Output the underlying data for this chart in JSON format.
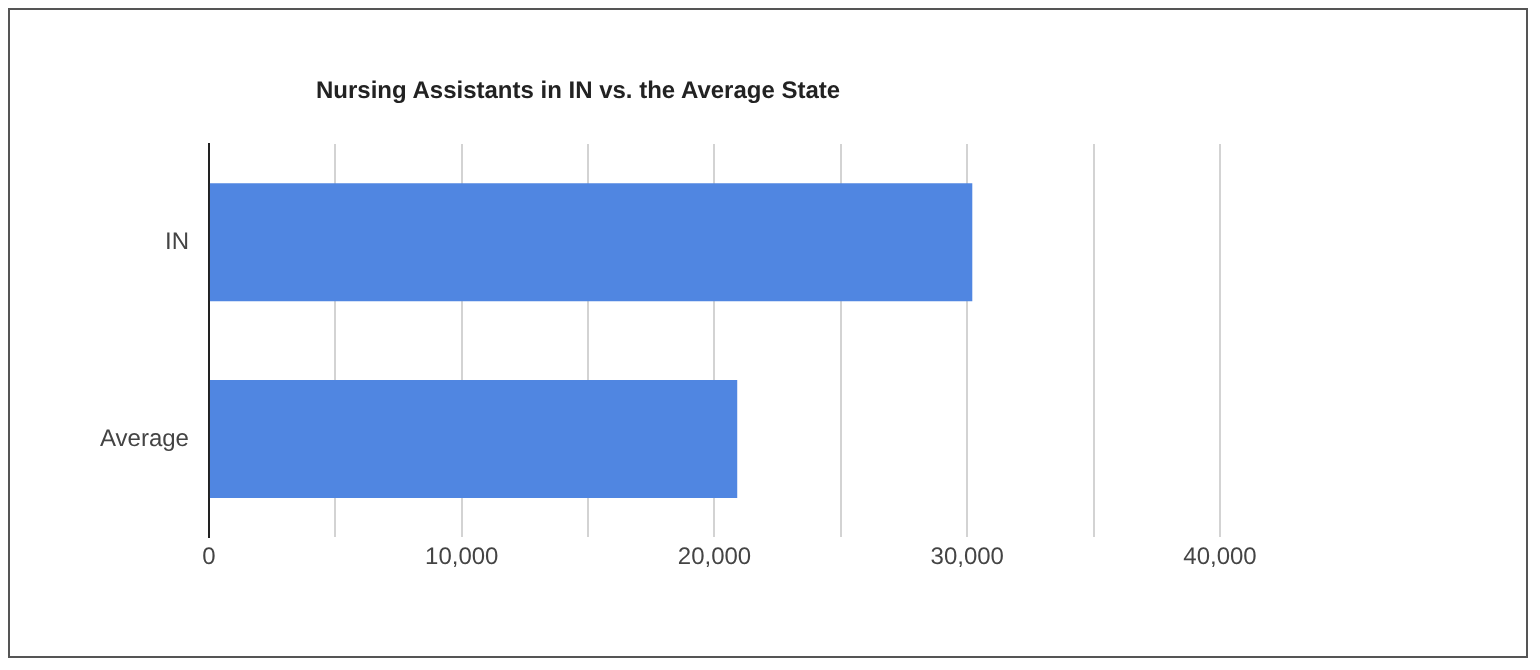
{
  "chart_data": {
    "type": "bar",
    "orientation": "horizontal",
    "title": "Nursing Assistants in IN vs. the Average State",
    "categories": [
      "IN",
      "Average"
    ],
    "series": [
      {
        "color": "#5086e1",
        "values": [
          30200,
          20900
        ]
      }
    ],
    "xlim": [
      0,
      40000
    ],
    "xticks": [
      0,
      {
        "value": 5000,
        "label": null
      },
      {
        "value": 10000,
        "label": "10,000"
      },
      {
        "value": 15000,
        "label": null
      },
      {
        "value": 20000,
        "label": "20,000"
      },
      {
        "value": 25000,
        "label": null
      },
      {
        "value": 30000,
        "label": "30,000"
      },
      {
        "value": 35000,
        "label": null
      },
      {
        "value": 40000,
        "label": "40,000"
      }
    ],
    "grid": "x",
    "legend": false
  }
}
